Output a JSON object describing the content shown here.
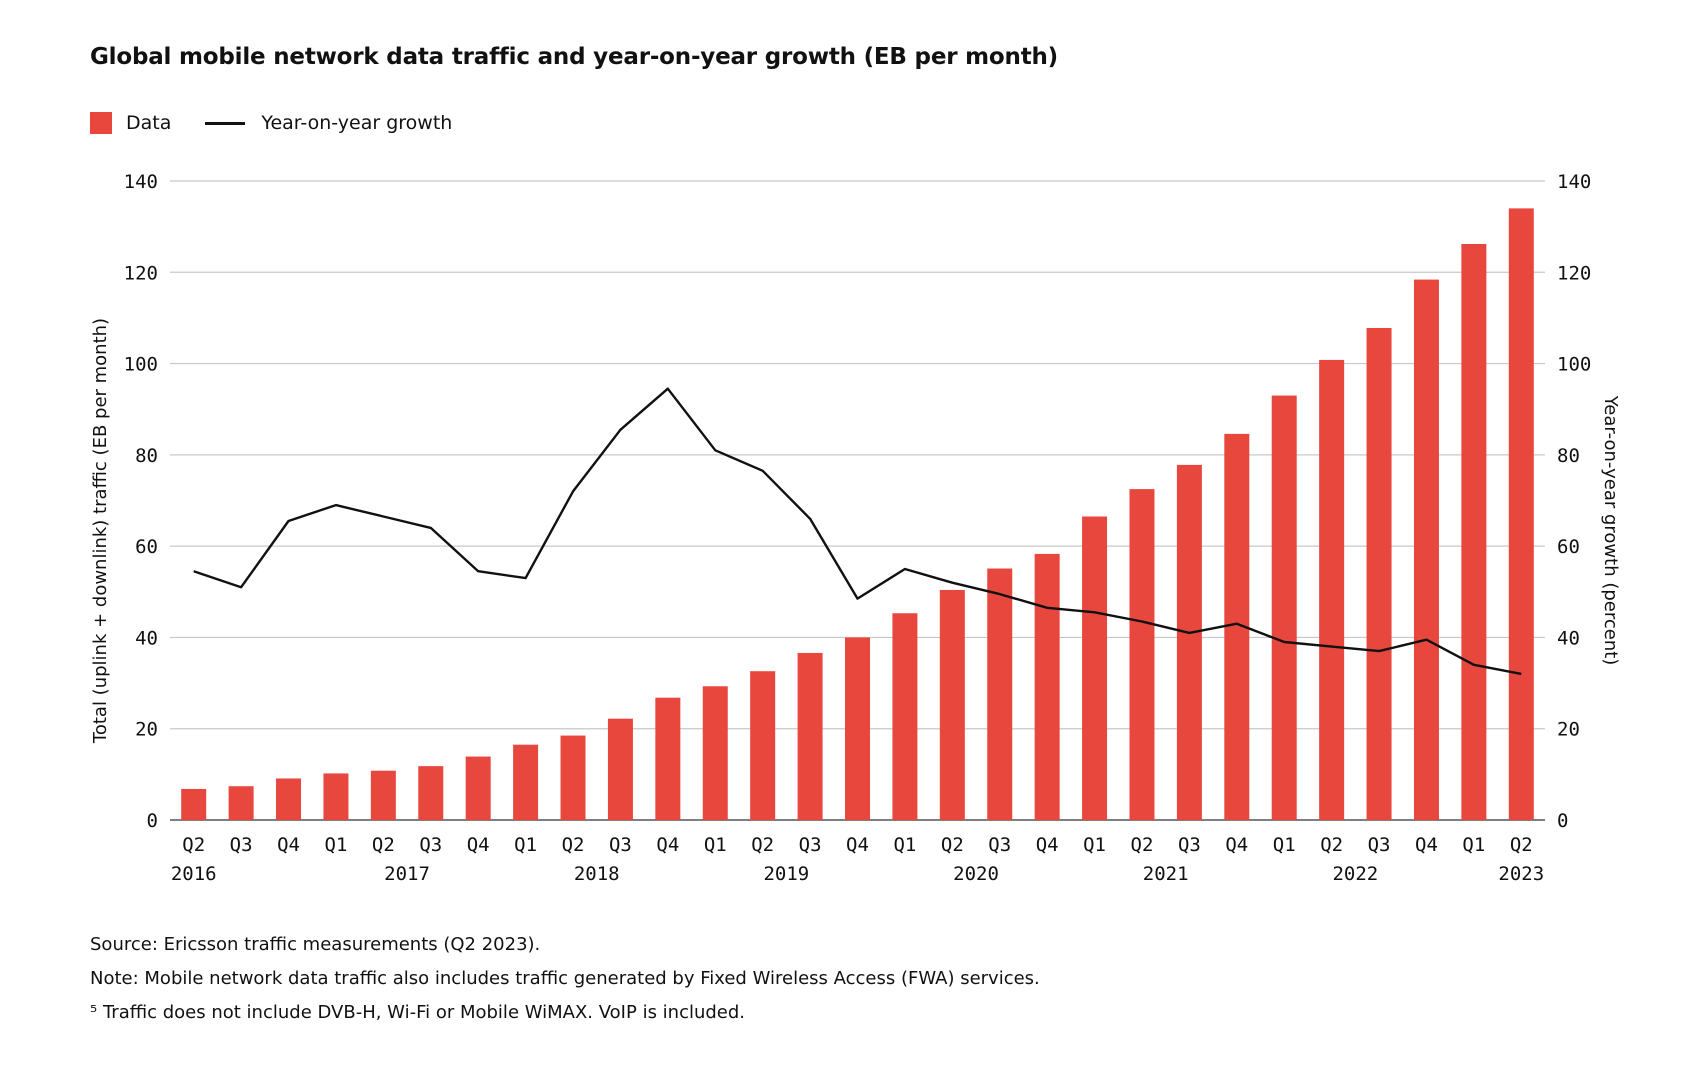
{
  "title": "Global mobile network data traffic and year-on-year growth (EB per month)",
  "legend": {
    "data_label": "Data",
    "growth_label": "Year-on-year growth"
  },
  "colors": {
    "bar": "#E8473E",
    "line": "#111111",
    "grid": "#c8c8c8"
  },
  "chart_data": {
    "type": "bar",
    "title": "Global mobile network data traffic and year-on-year growth (EB per month)",
    "categories": [
      "Q2",
      "Q3",
      "Q4",
      "Q1",
      "Q2",
      "Q3",
      "Q4",
      "Q1",
      "Q2",
      "Q3",
      "Q4",
      "Q1",
      "Q2",
      "Q3",
      "Q4",
      "Q1",
      "Q2",
      "Q3",
      "Q4",
      "Q1",
      "Q2",
      "Q3",
      "Q4",
      "Q1",
      "Q2",
      "Q3",
      "Q4",
      "Q1",
      "Q2"
    ],
    "year_labels": [
      {
        "index": 0,
        "label": "2016"
      },
      {
        "index": 4,
        "label": "2017"
      },
      {
        "index": 8,
        "label": "2018"
      },
      {
        "index": 12,
        "label": "2019"
      },
      {
        "index": 16,
        "label": "2020"
      },
      {
        "index": 20,
        "label": "2021"
      },
      {
        "index": 24,
        "label": "2022"
      },
      {
        "index": 28,
        "label": "2023"
      }
    ],
    "series": [
      {
        "name": "Data",
        "type": "bar",
        "axis": "left",
        "values": [
          6.8,
          7.4,
          9.1,
          10.2,
          10.8,
          11.8,
          13.9,
          16.5,
          18.5,
          22.2,
          26.8,
          29.3,
          32.6,
          36.6,
          40.0,
          45.3,
          50.4,
          55.1,
          58.3,
          66.5,
          72.5,
          77.8,
          84.6,
          93.0,
          100.8,
          107.8,
          118.4,
          126.2,
          134.0
        ]
      },
      {
        "name": "Year-on-year growth",
        "type": "line",
        "axis": "right",
        "values": [
          54.5,
          51.0,
          65.5,
          69.0,
          66.5,
          64.0,
          54.5,
          53.0,
          72.0,
          85.5,
          94.5,
          81.0,
          76.5,
          66.0,
          48.5,
          55.0,
          52.0,
          49.5,
          46.5,
          45.5,
          43.5,
          41.0,
          43.0,
          39.0,
          38.0,
          37.0,
          39.5,
          34.0,
          32.0
        ]
      }
    ],
    "ylabel": "Total (uplink + downlink) traffic (EB per month)",
    "y2label": "Year-on-year growth (percent)",
    "ylim": [
      0,
      140
    ],
    "y2lim": [
      0,
      140
    ],
    "yticks": [
      0,
      20,
      40,
      60,
      80,
      100,
      120,
      140
    ],
    "y2ticks": [
      0,
      20,
      40,
      60,
      80,
      100,
      120,
      140
    ],
    "grid": true,
    "legend_position": "top-left"
  },
  "notes": {
    "source": "Source: Ericsson traffic measurements (Q2 2023).",
    "note": "Note: Mobile network data traffic also includes traffic generated by Fixed Wireless Access (FWA) services.",
    "footnote": "⁵ Traffic does not include DVB-H, Wi-Fi or Mobile WiMAX. VoIP is included."
  }
}
